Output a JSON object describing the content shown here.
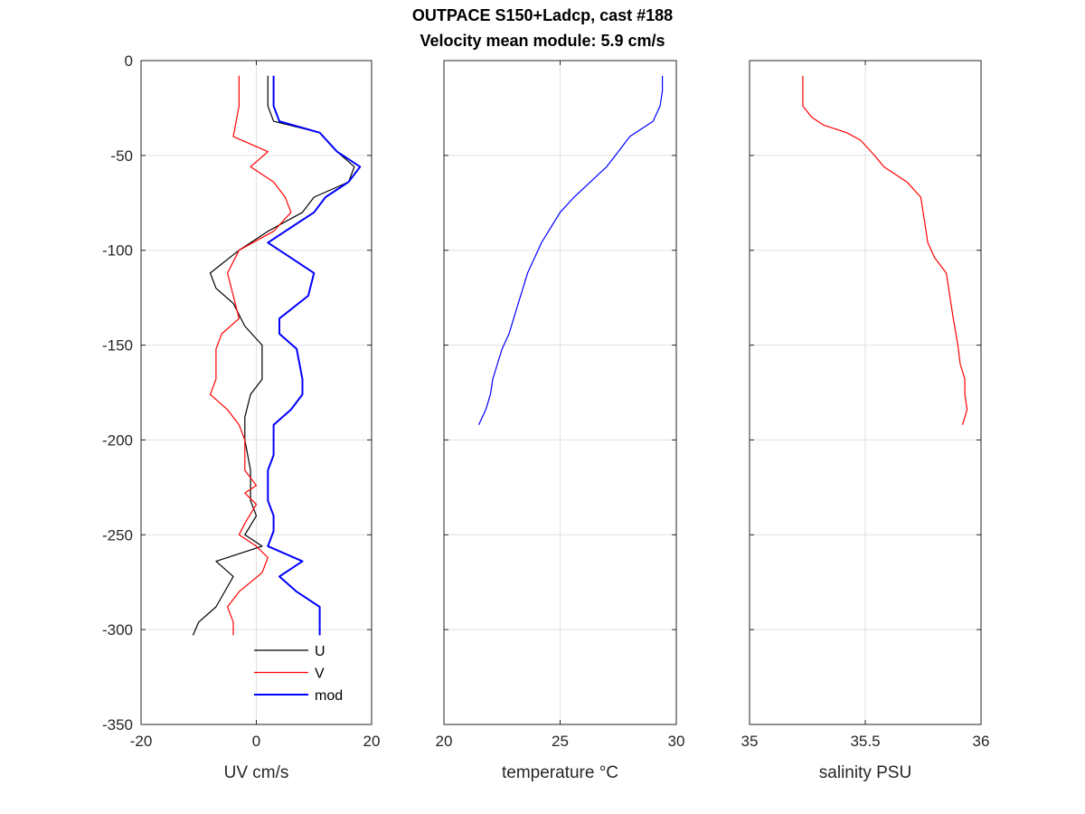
{
  "title": "OUTPACE S150+Ladcp, cast #188",
  "subtitle": "Velocity mean module:  5.9 cm/s",
  "chart_data": [
    {
      "type": "line",
      "xlabel": "UV cm/s",
      "ylabel": "",
      "xlim": [
        -20,
        20
      ],
      "ylim": [
        -350,
        0
      ],
      "xticks": [
        -20,
        0,
        20
      ],
      "yticks": [
        0,
        -50,
        -100,
        -150,
        -200,
        -250,
        -300,
        -350
      ],
      "grid": true,
      "legend": {
        "position": "bottom-center",
        "entries": [
          "U",
          "V",
          "mod"
        ]
      },
      "series": [
        {
          "name": "U",
          "color": "#000000",
          "points": [
            [
              2,
              -8
            ],
            [
              2,
              -24
            ],
            [
              3,
              -32
            ],
            [
              11,
              -38
            ],
            [
              14,
              -48
            ],
            [
              17,
              -56
            ],
            [
              16,
              -64
            ],
            [
              10,
              -72
            ],
            [
              8,
              -80
            ],
            [
              2,
              -90
            ],
            [
              -3,
              -100
            ],
            [
              -8,
              -112
            ],
            [
              -7,
              -120
            ],
            [
              -4,
              -128
            ],
            [
              -2,
              -140
            ],
            [
              1,
              -150
            ],
            [
              1,
              -168
            ],
            [
              -1,
              -176
            ],
            [
              -2,
              -188
            ],
            [
              -2,
              -200
            ],
            [
              -1,
              -216
            ],
            [
              -1,
              -232
            ],
            [
              0,
              -240
            ],
            [
              -2,
              -250
            ],
            [
              1,
              -256
            ],
            [
              -7,
              -264
            ],
            [
              -4,
              -272
            ],
            [
              -7,
              -288
            ],
            [
              -10,
              -296
            ],
            [
              -11,
              -303
            ]
          ]
        },
        {
          "name": "V",
          "color": "#ff0000",
          "points": [
            [
              -3,
              -8
            ],
            [
              -3,
              -24
            ],
            [
              -4,
              -40
            ],
            [
              2,
              -48
            ],
            [
              -1,
              -56
            ],
            [
              3,
              -64
            ],
            [
              5,
              -72
            ],
            [
              6,
              -80
            ],
            [
              3,
              -90
            ],
            [
              -3,
              -100
            ],
            [
              -5,
              -112
            ],
            [
              -4,
              -124
            ],
            [
              -3,
              -136
            ],
            [
              -6,
              -144
            ],
            [
              -7,
              -152
            ],
            [
              -7,
              -168
            ],
            [
              -8,
              -176
            ],
            [
              -5,
              -184
            ],
            [
              -3,
              -192
            ],
            [
              -2,
              -200
            ],
            [
              -2,
              -216
            ],
            [
              0,
              -224
            ],
            [
              -2,
              -228
            ],
            [
              0,
              -234
            ],
            [
              -2,
              -244
            ],
            [
              -3,
              -250
            ],
            [
              0,
              -256
            ],
            [
              2,
              -262
            ],
            [
              1,
              -270
            ],
            [
              -3,
              -280
            ],
            [
              -5,
              -288
            ],
            [
              -4,
              -296
            ],
            [
              -4,
              -303
            ]
          ]
        },
        {
          "name": "mod",
          "color": "#0000ff",
          "points": [
            [
              3,
              -8
            ],
            [
              3,
              -24
            ],
            [
              4,
              -32
            ],
            [
              11,
              -38
            ],
            [
              14,
              -48
            ],
            [
              18,
              -56
            ],
            [
              16,
              -64
            ],
            [
              12,
              -72
            ],
            [
              10,
              -80
            ],
            [
              6,
              -88
            ],
            [
              2,
              -96
            ],
            [
              6,
              -104
            ],
            [
              10,
              -112
            ],
            [
              9,
              -124
            ],
            [
              4,
              -136
            ],
            [
              4,
              -144
            ],
            [
              7,
              -152
            ],
            [
              8,
              -168
            ],
            [
              8,
              -176
            ],
            [
              6,
              -184
            ],
            [
              3,
              -192
            ],
            [
              3,
              -200
            ],
            [
              3,
              -208
            ],
            [
              2,
              -216
            ],
            [
              2,
              -232
            ],
            [
              3,
              -240
            ],
            [
              3,
              -248
            ],
            [
              2,
              -256
            ],
            [
              8,
              -264
            ],
            [
              4,
              -272
            ],
            [
              7,
              -280
            ],
            [
              11,
              -288
            ],
            [
              11,
              -303
            ]
          ]
        }
      ]
    },
    {
      "type": "line",
      "xlabel": "temperature °C",
      "ylabel": "",
      "xlim": [
        20,
        30
      ],
      "ylim": [
        -350,
        0
      ],
      "xticks": [
        20,
        25,
        30
      ],
      "grid": true,
      "series": [
        {
          "color": "#0000ff",
          "points": [
            [
              29.4,
              -8
            ],
            [
              29.4,
              -16
            ],
            [
              29.3,
              -24
            ],
            [
              29.0,
              -32
            ],
            [
              28.0,
              -40
            ],
            [
              27.5,
              -48
            ],
            [
              27.0,
              -56
            ],
            [
              26.3,
              -64
            ],
            [
              25.6,
              -72
            ],
            [
              25.0,
              -80
            ],
            [
              24.6,
              -88
            ],
            [
              24.2,
              -96
            ],
            [
              23.9,
              -104
            ],
            [
              23.6,
              -112
            ],
            [
              23.4,
              -120
            ],
            [
              23.2,
              -128
            ],
            [
              23.0,
              -136
            ],
            [
              22.8,
              -144
            ],
            [
              22.5,
              -152
            ],
            [
              22.3,
              -160
            ],
            [
              22.1,
              -168
            ],
            [
              22.0,
              -176
            ],
            [
              21.8,
              -184
            ],
            [
              21.5,
              -192
            ]
          ]
        }
      ]
    },
    {
      "type": "line",
      "xlabel": "salinity PSU",
      "ylabel": "",
      "xlim": [
        35,
        36
      ],
      "ylim": [
        -350,
        0
      ],
      "xticks": [
        35,
        35.5,
        36
      ],
      "grid": true,
      "series": [
        {
          "color": "#ff0000",
          "points": [
            [
              35.23,
              -8
            ],
            [
              35.23,
              -16
            ],
            [
              35.23,
              -24
            ],
            [
              35.27,
              -30
            ],
            [
              35.32,
              -34
            ],
            [
              35.42,
              -38
            ],
            [
              35.48,
              -42
            ],
            [
              35.54,
              -50
            ],
            [
              35.58,
              -56
            ],
            [
              35.68,
              -64
            ],
            [
              35.74,
              -72
            ],
            [
              35.75,
              -80
            ],
            [
              35.76,
              -88
            ],
            [
              35.77,
              -96
            ],
            [
              35.8,
              -104
            ],
            [
              35.85,
              -112
            ],
            [
              35.86,
              -120
            ],
            [
              35.88,
              -136
            ],
            [
              35.9,
              -150
            ],
            [
              35.91,
              -160
            ],
            [
              35.93,
              -168
            ],
            [
              35.93,
              -176
            ],
            [
              35.94,
              -184
            ],
            [
              35.92,
              -192
            ]
          ]
        }
      ]
    }
  ]
}
